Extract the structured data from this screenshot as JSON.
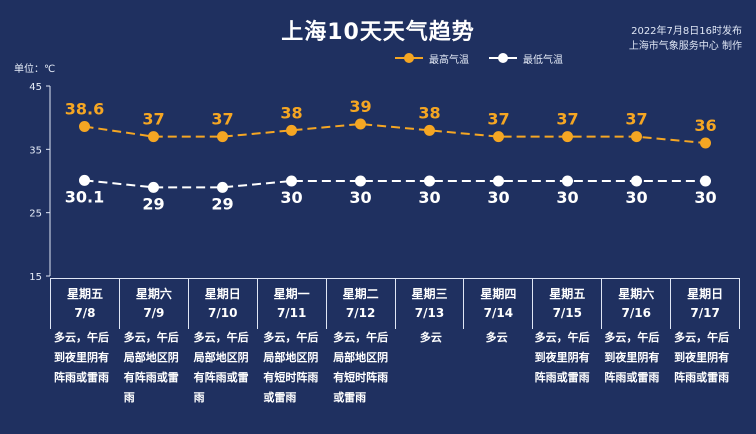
{
  "header": {
    "title": "上海10天天气趋势",
    "date_note": "2022年7月8日16时发布",
    "source_note": "上海市气象服务中心 制作",
    "unit_label": "单位：℃"
  },
  "legend": {
    "high_label": "最高气温",
    "low_label": "最低气温"
  },
  "colors": {
    "background": "#1f3060",
    "high": "#f5a623",
    "low": "#ffffff"
  },
  "chart_data": {
    "type": "line",
    "title": "上海10天天气趋势",
    "ylabel": "单位：℃",
    "ylim": [
      15,
      45
    ],
    "yticks": [
      15,
      25,
      35,
      45
    ],
    "categories": [
      "7/8",
      "7/9",
      "7/10",
      "7/11",
      "7/12",
      "7/13",
      "7/14",
      "7/15",
      "7/16",
      "7/17"
    ],
    "series": [
      {
        "name": "最高气温",
        "values": [
          38.6,
          37,
          37,
          38,
          39,
          38,
          37,
          37,
          37,
          36
        ],
        "labels": [
          "38.6",
          "37",
          "37",
          "38",
          "39",
          "38",
          "37",
          "37",
          "37",
          "36"
        ]
      },
      {
        "name": "最低气温",
        "values": [
          30.1,
          29,
          29,
          30,
          30,
          30,
          30,
          30,
          30,
          30
        ],
        "labels": [
          "30.1",
          "29",
          "29",
          "30",
          "30",
          "30",
          "30",
          "30",
          "30",
          "30"
        ]
      }
    ],
    "grid": false,
    "legend_position": "top-right"
  },
  "days": [
    {
      "weekday": "星期五",
      "date": "7/8",
      "weather": "多云，午后到夜里阴有阵雨或雷雨"
    },
    {
      "weekday": "星期六",
      "date": "7/9",
      "weather": "多云，午后局部地区阴有阵雨或雷雨"
    },
    {
      "weekday": "星期日",
      "date": "7/10",
      "weather": "多云，午后局部地区阴有阵雨或雷雨"
    },
    {
      "weekday": "星期一",
      "date": "7/11",
      "weather": "多云，午后局部地区阴有短时阵雨或雷雨"
    },
    {
      "weekday": "星期二",
      "date": "7/12",
      "weather": "多云，午后局部地区阴有短时阵雨或雷雨"
    },
    {
      "weekday": "星期三",
      "date": "7/13",
      "weather": "多云"
    },
    {
      "weekday": "星期四",
      "date": "7/14",
      "weather": "多云"
    },
    {
      "weekday": "星期五",
      "date": "7/15",
      "weather": "多云，午后到夜里阴有阵雨或雷雨"
    },
    {
      "weekday": "星期六",
      "date": "7/16",
      "weather": "多云，午后到夜里阴有阵雨或雷雨"
    },
    {
      "weekday": "星期日",
      "date": "7/17",
      "weather": "多云，午后到夜里阴有阵雨或雷雨"
    }
  ]
}
